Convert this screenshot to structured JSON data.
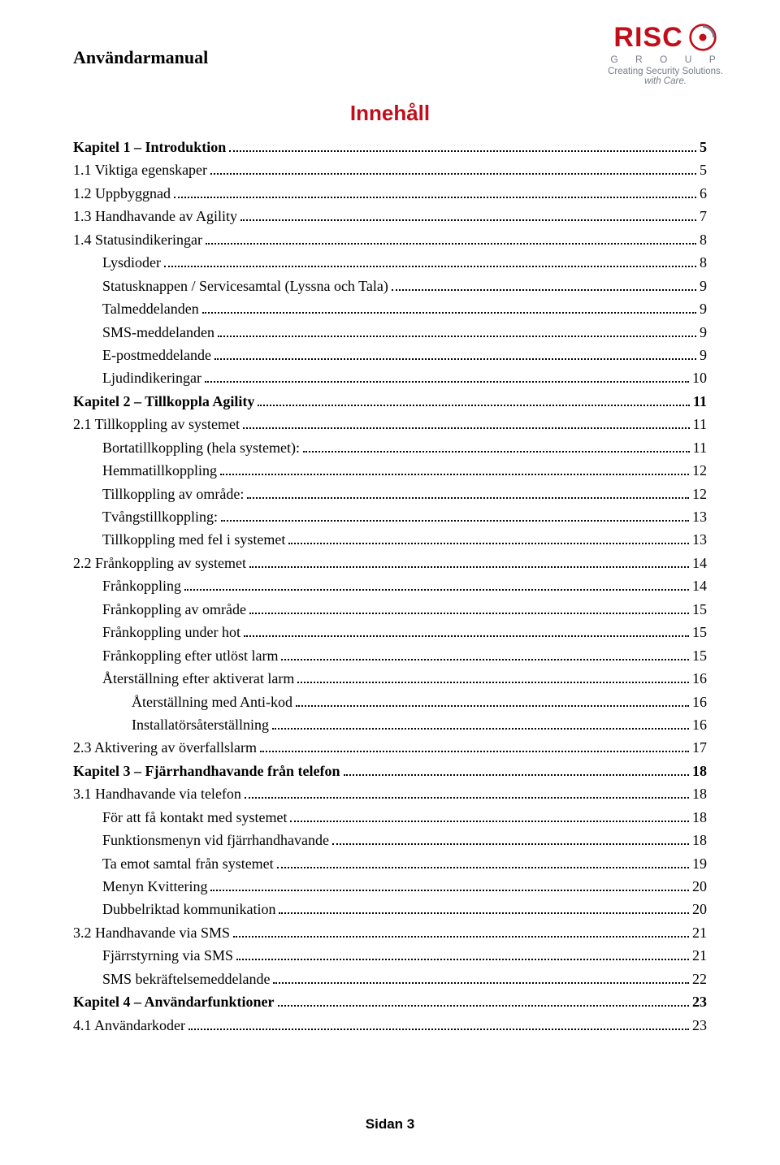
{
  "colors": {
    "brand_red": "#c10e1a",
    "brand_grey": "#777c88",
    "text": "#000000",
    "background": "#ffffff"
  },
  "typography": {
    "body_font": "Book Antiqua / Palatino serif",
    "body_size_pt": 13,
    "heading_font": "Arial bold",
    "toc_title_size_pt": 19,
    "header_title_size_pt": 16
  },
  "header": {
    "title": "Användarmanual"
  },
  "logo": {
    "brand": "RISC",
    "group": "G R O U P",
    "tagline_plain": "Creating Security Solutions.",
    "tagline_italic": "with Care."
  },
  "toc": {
    "title": "Innehåll",
    "dot_style": "dotted",
    "entries": [
      {
        "label": "Kapitel 1 – Introduktion",
        "page": "5",
        "level": 0
      },
      {
        "label": "1.1 Viktiga egenskaper",
        "page": "5",
        "level": 1
      },
      {
        "label": "1.2 Uppbyggnad",
        "page": "6",
        "level": 1
      },
      {
        "label": "1.3 Handhavande av Agility",
        "page": "7",
        "level": 1
      },
      {
        "label": "1.4 Statusindikeringar",
        "page": "8",
        "level": 1
      },
      {
        "label": "Lysdioder",
        "page": "8",
        "level": 2
      },
      {
        "label": "Statusknappen / Servicesamtal (Lyssna och Tala)",
        "page": "9",
        "level": 2
      },
      {
        "label": "Talmeddelanden",
        "page": "9",
        "level": 2
      },
      {
        "label": "SMS-meddelanden",
        "page": "9",
        "level": 2
      },
      {
        "label": "E-postmeddelande",
        "page": "9",
        "level": 2
      },
      {
        "label": "Ljudindikeringar",
        "page": "10",
        "level": 2
      },
      {
        "label": "Kapitel 2 – Tillkoppla Agility",
        "page": "11",
        "level": 0
      },
      {
        "label": "2.1 Tillkoppling av systemet",
        "page": "11",
        "level": 1
      },
      {
        "label": "Bortatillkoppling (hela systemet):",
        "page": "11",
        "level": 2
      },
      {
        "label": "Hemmatillkoppling",
        "page": "12",
        "level": 2
      },
      {
        "label": "Tillkoppling av område:",
        "page": "12",
        "level": 2
      },
      {
        "label": "Tvångstillkoppling:",
        "page": "13",
        "level": 2
      },
      {
        "label": "Tillkoppling med fel i systemet",
        "page": "13",
        "level": 2
      },
      {
        "label": "2.2 Frånkoppling av systemet",
        "page": "14",
        "level": 1
      },
      {
        "label": "Frånkoppling",
        "page": "14",
        "level": 2
      },
      {
        "label": "Frånkoppling av område",
        "page": "15",
        "level": 2
      },
      {
        "label": "Frånkoppling under hot",
        "page": "15",
        "level": 2
      },
      {
        "label": "Frånkoppling efter utlöst larm",
        "page": "15",
        "level": 2
      },
      {
        "label": "Återställning efter aktiverat larm",
        "page": "16",
        "level": 2
      },
      {
        "label": "Återställning med Anti-kod",
        "page": "16",
        "level": 3
      },
      {
        "label": "Installatörsåterställning",
        "page": "16",
        "level": 3
      },
      {
        "label": "2.3 Aktivering av överfallslarm",
        "page": "17",
        "level": 1
      },
      {
        "label": "Kapitel 3 – Fjärrhandhavande från telefon",
        "page": "18",
        "level": 0
      },
      {
        "label": "3.1 Handhavande via telefon",
        "page": "18",
        "level": 1
      },
      {
        "label": "För att få kontakt med systemet",
        "page": "18",
        "level": 2
      },
      {
        "label": "Funktionsmenyn vid fjärrhandhavande",
        "page": "18",
        "level": 2
      },
      {
        "label": "Ta emot samtal från systemet",
        "page": "19",
        "level": 2
      },
      {
        "label": "Menyn Kvittering",
        "page": "20",
        "level": 2
      },
      {
        "label": "Dubbelriktad kommunikation",
        "page": "20",
        "level": 2
      },
      {
        "label": "3.2 Handhavande via SMS",
        "page": "21",
        "level": 1
      },
      {
        "label": "Fjärrstyrning via SMS",
        "page": "21",
        "level": 2
      },
      {
        "label": "SMS bekräftelsemeddelande",
        "page": "22",
        "level": 2
      },
      {
        "label": "Kapitel 4 – Användarfunktioner",
        "page": "23",
        "level": 0
      },
      {
        "label": "4.1 Användarkoder",
        "page": "23",
        "level": 1
      }
    ]
  },
  "footer": {
    "text": "Sidan 3"
  }
}
